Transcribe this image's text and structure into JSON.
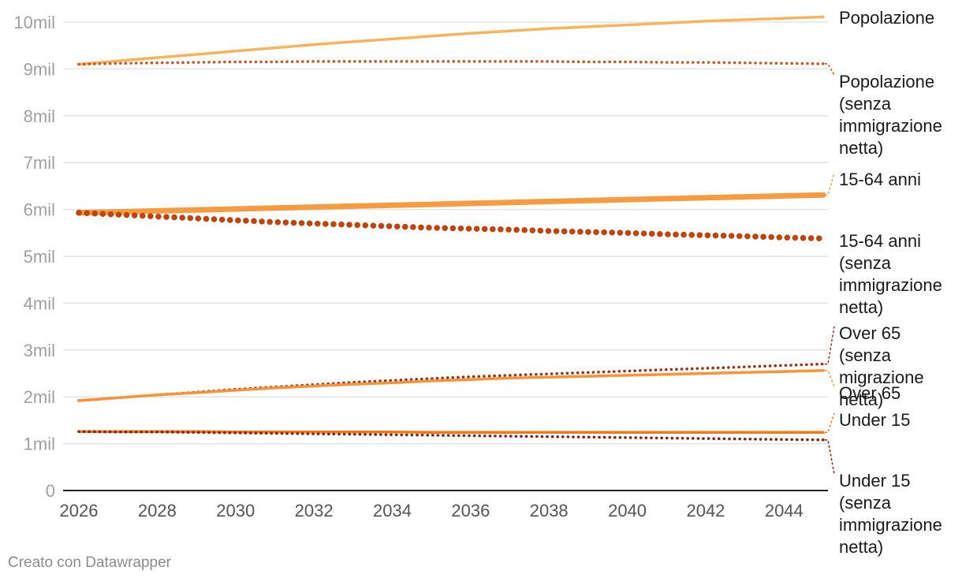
{
  "chart_data": {
    "type": "line",
    "x": [
      2026,
      2027,
      2028,
      2029,
      2030,
      2031,
      2032,
      2033,
      2034,
      2035,
      2036,
      2037,
      2038,
      2039,
      2040,
      2041,
      2042,
      2043,
      2044,
      2045
    ],
    "x_ticks": [
      "2026",
      "2028",
      "2030",
      "2032",
      "2034",
      "2036",
      "2038",
      "2040",
      "2042",
      "2044"
    ],
    "y_ticks": [
      "0",
      "1mil",
      "2mil",
      "3mil",
      "4mil",
      "5mil",
      "6mil",
      "7mil",
      "8mil",
      "9mil",
      "10mil"
    ],
    "xlim": [
      2026,
      2045
    ],
    "ylim": [
      0,
      10
    ],
    "yunit": "milioni",
    "series": [
      {
        "name": "Popolazione",
        "label_lines": [
          "Popolazione"
        ],
        "style": "solid",
        "weight": "thin",
        "color": "#f9b35c",
        "values": [
          9.1,
          9.17,
          9.24,
          9.31,
          9.38,
          9.45,
          9.52,
          9.58,
          9.64,
          9.7,
          9.76,
          9.81,
          9.86,
          9.9,
          9.94,
          9.98,
          10.02,
          10.05,
          10.08,
          10.11
        ]
      },
      {
        "name": "Popolazione (senza immigrazione netta)",
        "label_lines": [
          "Popolazione",
          "(senza",
          "immigrazione",
          "netta)"
        ],
        "style": "dotted",
        "weight": "thin",
        "color": "#d2531b",
        "values": [
          9.1,
          9.12,
          9.13,
          9.14,
          9.15,
          9.15,
          9.16,
          9.16,
          9.16,
          9.16,
          9.16,
          9.16,
          9.16,
          9.15,
          9.15,
          9.14,
          9.14,
          9.13,
          9.12,
          9.11
        ]
      },
      {
        "name": "15-64 anni",
        "label_lines": [
          "15-64 anni"
        ],
        "style": "solid",
        "weight": "thick",
        "color": "#f89a3f",
        "values": [
          5.93,
          5.95,
          5.97,
          5.99,
          6.01,
          6.03,
          6.05,
          6.07,
          6.09,
          6.11,
          6.13,
          6.15,
          6.17,
          6.19,
          6.21,
          6.23,
          6.25,
          6.27,
          6.29,
          6.31
        ]
      },
      {
        "name": "15-64 anni (senza immigrazione netta)",
        "label_lines": [
          "15-64 anni",
          "(senza",
          "immigrazione",
          "netta)"
        ],
        "style": "dotted",
        "weight": "thick",
        "color": "#c0440c",
        "values": [
          5.93,
          5.89,
          5.85,
          5.81,
          5.77,
          5.73,
          5.7,
          5.67,
          5.64,
          5.61,
          5.59,
          5.57,
          5.54,
          5.52,
          5.5,
          5.47,
          5.45,
          5.43,
          5.4,
          5.38
        ]
      },
      {
        "name": "Over 65 (senza migrazione netta)",
        "label_lines": [
          "Over 65",
          "(senza",
          "migrazione",
          "netta)"
        ],
        "style": "dotted",
        "weight": "thin",
        "color": "#a32d12",
        "values": [
          1.92,
          1.98,
          2.04,
          2.1,
          2.16,
          2.21,
          2.26,
          2.31,
          2.35,
          2.39,
          2.43,
          2.46,
          2.49,
          2.52,
          2.55,
          2.58,
          2.61,
          2.64,
          2.67,
          2.7
        ]
      },
      {
        "name": "Over 65",
        "label_lines": [
          "Over 65"
        ],
        "style": "solid",
        "weight": "thin",
        "color": "#f8933a",
        "values": [
          1.92,
          1.98,
          2.04,
          2.09,
          2.14,
          2.19,
          2.23,
          2.27,
          2.3,
          2.34,
          2.37,
          2.4,
          2.42,
          2.44,
          2.46,
          2.48,
          2.5,
          2.52,
          2.54,
          2.56
        ]
      },
      {
        "name": "Under 15",
        "label_lines": [
          "Under 15"
        ],
        "style": "solid",
        "weight": "thin",
        "color": "#f07a1a",
        "values": [
          1.26,
          1.26,
          1.26,
          1.26,
          1.25,
          1.25,
          1.25,
          1.25,
          1.25,
          1.24,
          1.24,
          1.24,
          1.24,
          1.24,
          1.24,
          1.24,
          1.24,
          1.24,
          1.24,
          1.24
        ]
      },
      {
        "name": "Under 15 (senza immigrazione netta)",
        "label_lines": [
          "Under 15",
          "(senza",
          "immigrazione",
          "netta)"
        ],
        "style": "dotted",
        "weight": "thin",
        "color": "#8a1c0c",
        "values": [
          1.26,
          1.25,
          1.25,
          1.24,
          1.23,
          1.22,
          1.21,
          1.2,
          1.19,
          1.18,
          1.17,
          1.16,
          1.15,
          1.14,
          1.13,
          1.12,
          1.11,
          1.1,
          1.09,
          1.08
        ]
      }
    ]
  },
  "footer": {
    "credit": "Creato con Datawrapper"
  }
}
